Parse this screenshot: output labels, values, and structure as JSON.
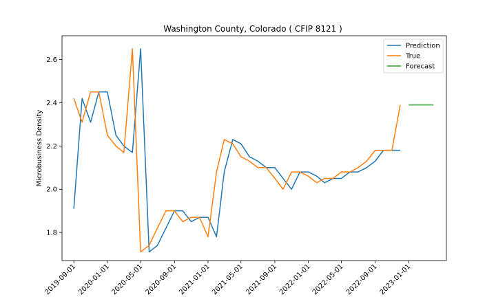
{
  "chart_data": {
    "type": "line",
    "title": "Washington County, Colorado ( CFIP 8121 )",
    "xlabel": "",
    "ylabel": "Microbusiness Density",
    "ylim": [
      1.67,
      2.71
    ],
    "xlim": [
      "2019-07-20",
      "2023-05-18"
    ],
    "yticks": [
      1.8,
      2.0,
      2.2,
      2.4,
      2.6
    ],
    "ytick_labels": [
      "1.8",
      "2.0",
      "2.2",
      "2.4",
      "2.6"
    ],
    "xticks": [
      "2019-09-01",
      "2020-01-01",
      "2020-05-01",
      "2020-09-01",
      "2021-01-01",
      "2021-05-01",
      "2021-09-01",
      "2022-01-01",
      "2022-05-01",
      "2022-09-01",
      "2023-01-01"
    ],
    "grid": false,
    "legend": {
      "position": "top-right"
    },
    "series": [
      {
        "name": "Prediction",
        "color": "#1f77b4",
        "x": [
          "2019-09-01",
          "2019-10-01",
          "2019-11-01",
          "2019-12-01",
          "2020-01-01",
          "2020-02-01",
          "2020-03-01",
          "2020-04-01",
          "2020-05-01",
          "2020-06-01",
          "2020-07-01",
          "2020-08-01",
          "2020-09-01",
          "2020-10-01",
          "2020-11-01",
          "2020-12-01",
          "2021-01-01",
          "2021-02-01",
          "2021-03-01",
          "2021-04-01",
          "2021-05-01",
          "2021-06-01",
          "2021-07-01",
          "2021-08-01",
          "2021-09-01",
          "2021-10-01",
          "2021-11-01",
          "2021-12-01",
          "2022-01-01",
          "2022-02-01",
          "2022-03-01",
          "2022-04-01",
          "2022-05-01",
          "2022-06-01",
          "2022-07-01",
          "2022-08-01",
          "2022-09-01",
          "2022-10-01",
          "2022-11-01",
          "2022-12-01"
        ],
        "values": [
          1.91,
          2.42,
          2.31,
          2.45,
          2.45,
          2.25,
          2.2,
          2.17,
          2.65,
          1.71,
          1.74,
          1.82,
          1.9,
          1.9,
          1.85,
          1.87,
          1.87,
          1.78,
          2.08,
          2.23,
          2.21,
          2.15,
          2.13,
          2.1,
          2.1,
          2.05,
          2.0,
          2.08,
          2.08,
          2.06,
          2.03,
          2.05,
          2.05,
          2.08,
          2.08,
          2.1,
          2.13,
          2.18,
          2.18,
          2.18
        ]
      },
      {
        "name": "True",
        "color": "#ff7f0e",
        "x": [
          "2019-09-01",
          "2019-10-01",
          "2019-11-01",
          "2019-12-01",
          "2020-01-01",
          "2020-02-01",
          "2020-03-01",
          "2020-04-01",
          "2020-05-01",
          "2020-06-01",
          "2020-07-01",
          "2020-08-01",
          "2020-09-01",
          "2020-10-01",
          "2020-11-01",
          "2020-12-01",
          "2021-01-01",
          "2021-02-01",
          "2021-03-01",
          "2021-04-01",
          "2021-05-01",
          "2021-06-01",
          "2021-07-01",
          "2021-08-01",
          "2021-09-01",
          "2021-10-01",
          "2021-11-01",
          "2021-12-01",
          "2022-01-01",
          "2022-02-01",
          "2022-03-01",
          "2022-04-01",
          "2022-05-01",
          "2022-06-01",
          "2022-07-01",
          "2022-08-01",
          "2022-09-01",
          "2022-10-01",
          "2022-11-01",
          "2022-12-01"
        ],
        "values": [
          2.42,
          2.31,
          2.45,
          2.45,
          2.25,
          2.2,
          2.17,
          2.65,
          1.71,
          1.74,
          1.82,
          1.9,
          1.9,
          1.85,
          1.87,
          1.87,
          1.78,
          2.08,
          2.23,
          2.21,
          2.15,
          2.13,
          2.1,
          2.1,
          2.05,
          2.0,
          2.08,
          2.08,
          2.06,
          2.03,
          2.05,
          2.05,
          2.08,
          2.08,
          2.1,
          2.13,
          2.18,
          2.18,
          2.18,
          2.39
        ]
      },
      {
        "name": "Forecast",
        "color": "#2ca02c",
        "x": [
          "2023-01-01",
          "2023-02-01",
          "2023-03-01",
          "2023-04-01"
        ],
        "values": [
          2.39,
          2.39,
          2.39,
          2.39
        ]
      }
    ]
  }
}
